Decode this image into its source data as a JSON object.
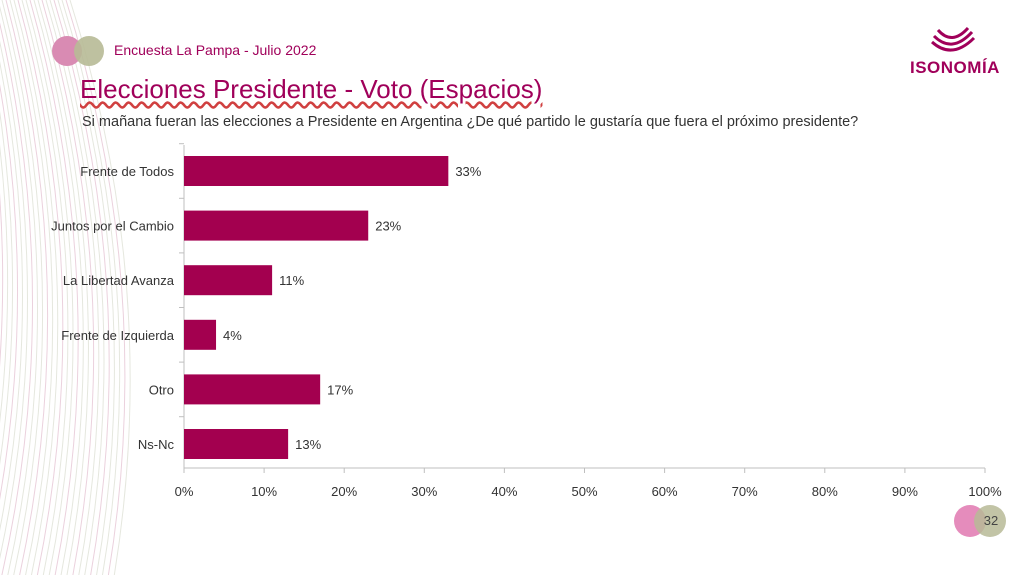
{
  "header": {
    "survey_label": "Encuesta La Pampa - Julio 2022",
    "title": "Elecciones Presidente - Voto  (Espacios)",
    "question": "Si mañana fueran las elecciones a Presidente en Argentina ¿De qué partido le gustaría que fuera el próximo presidente?",
    "brand": "ISONOMÍA"
  },
  "footer": {
    "page_number": "32"
  },
  "colors": {
    "accent": "#a0005a",
    "bar": "#a3004f"
  },
  "chart_data": {
    "type": "bar",
    "orientation": "horizontal",
    "categories": [
      "Frente de Todos",
      "Juntos por el Cambio",
      "La Libertad Avanza",
      "Frente de Izquierda",
      "Otro",
      "Ns-Nc"
    ],
    "values": [
      33,
      23,
      11,
      4,
      17,
      13
    ],
    "data_labels": [
      "33%",
      "23%",
      "11%",
      "4%",
      "17%",
      "13%"
    ],
    "xlim": [
      0,
      100
    ],
    "xticks": [
      "0%",
      "10%",
      "20%",
      "30%",
      "40%",
      "50%",
      "60%",
      "70%",
      "80%",
      "90%",
      "100%"
    ],
    "grid": false,
    "legend": "none"
  }
}
